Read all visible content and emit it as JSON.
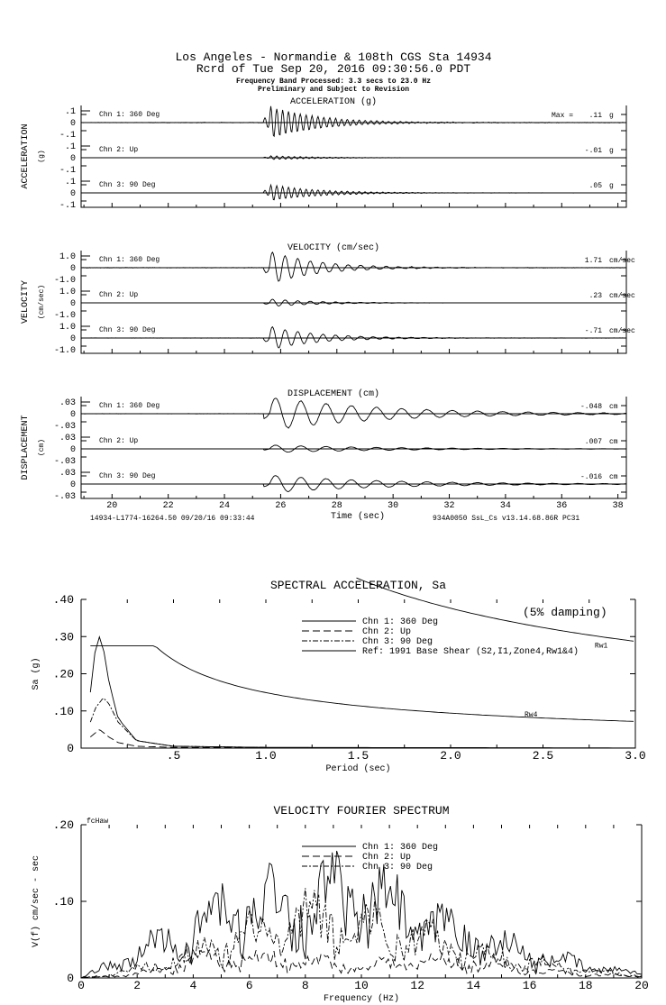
{
  "header": {
    "line1": "Los Angeles - Normandie & 108th     CGS Sta 14934",
    "line2": "Rcrd of Tue Sep 20, 2016 09:30:56.0 PDT",
    "line3": "Frequency Band Processed: 3.3 secs to 23.0 Hz",
    "line4": "Preliminary and Subject to Revision"
  },
  "footer": {
    "left": "14934-L1774-16264.50 09/20/16 09:33:44",
    "right": "934A0050  SsL_Cs  v13.14.68.86R PC31"
  },
  "chart_data": [
    {
      "type": "line",
      "title": "ACCELERATION (g)",
      "ylabel": "ACCELERATION",
      "yunit": "(g)",
      "max_label": "Max =",
      "xlim": [
        18.9,
        38.3
      ],
      "yticks": [
        ".1",
        "0",
        "-.1"
      ],
      "ylim": [
        -0.1,
        0.1
      ],
      "event_time": 25.6,
      "series": [
        {
          "name": "Chn 1: 360 Deg",
          "peak": ".11",
          "unit": "g",
          "amp": 0.11
        },
        {
          "name": "Chn 2: Up",
          "peak": "-.01",
          "unit": "g",
          "amp": 0.012
        },
        {
          "name": "Chn 3: 90 Deg",
          "peak": ".05",
          "unit": "g",
          "amp": 0.05
        }
      ]
    },
    {
      "type": "line",
      "title": "VELOCITY (cm/sec)",
      "ylabel": "VELOCITY",
      "yunit": "(cm/sec)",
      "xlim": [
        18.9,
        38.3
      ],
      "yticks": [
        "1.0",
        "0",
        "-1.0"
      ],
      "ylim": [
        -1,
        1
      ],
      "event_time": 25.6,
      "series": [
        {
          "name": "Chn 1: 360 Deg",
          "peak": "1.71",
          "unit": "cm/sec",
          "amp": 1.71
        },
        {
          "name": "Chn 2: Up",
          "peak": ".23",
          "unit": "cm/sec",
          "amp": 0.23
        },
        {
          "name": "Chn 3: 90 Deg",
          "peak": "-.71",
          "unit": "cm/sec",
          "amp": 0.71
        }
      ]
    },
    {
      "type": "line",
      "title": "DISPLACEMENT (cm)",
      "ylabel": "DISPLACEMENT",
      "yunit": "(cm)",
      "xlabel": "Time (sec)",
      "xlim": [
        18.9,
        38.3
      ],
      "yticks": [
        ".03",
        "0",
        "-.03"
      ],
      "ylim": [
        -0.03,
        0.03
      ],
      "event_time": 25.6,
      "xticks": [
        "20",
        "22",
        "24",
        "26",
        "28",
        "30",
        "32",
        "34",
        "36",
        "38"
      ],
      "series": [
        {
          "name": "Chn 1: 360 Deg",
          "peak": "-.048",
          "unit": "cm",
          "amp": 0.048
        },
        {
          "name": "Chn 2: Up",
          "peak": ".007",
          "unit": "cm",
          "amp": 0.007
        },
        {
          "name": "Chn 3: 90 Deg",
          "peak": "-.016",
          "unit": "cm",
          "amp": 0.016
        }
      ]
    },
    {
      "type": "line",
      "title": "SPECTRAL ACCELERATION, Sa",
      "note": "(5% damping)",
      "xlabel": "Period (sec)",
      "ylabel": "Sa (g)",
      "xlim": [
        0,
        3
      ],
      "ylim": [
        0,
        0.4
      ],
      "xticks": [
        ".5",
        "1.0",
        "1.5",
        "2.0",
        "2.5",
        "3.0"
      ],
      "yticks": [
        ".40",
        ".30",
        ".20",
        ".10",
        "0"
      ],
      "series": [
        {
          "name": "Chn 1: 360 Deg",
          "dash": "",
          "x": [
            0.05,
            0.08,
            0.1,
            0.12,
            0.15,
            0.2,
            0.3,
            0.5,
            1,
            3
          ],
          "y": [
            0.15,
            0.28,
            0.3,
            0.27,
            0.18,
            0.08,
            0.02,
            0.005,
            0.002,
            0.0005
          ]
        },
        {
          "name": "Chn 2: Up",
          "dash": "8 4",
          "x": [
            0.05,
            0.1,
            0.15,
            0.2,
            0.3,
            0.5,
            1
          ],
          "y": [
            0.03,
            0.05,
            0.03,
            0.015,
            0.005,
            0.002,
            0.001
          ]
        },
        {
          "name": "Chn 3: 90 Deg",
          "dash": "6 2 2 2",
          "x": [
            0.05,
            0.08,
            0.12,
            0.15,
            0.2,
            0.3,
            0.5,
            1
          ],
          "y": [
            0.07,
            0.11,
            0.135,
            0.12,
            0.07,
            0.02,
            0.005,
            0.002
          ]
        },
        {
          "name": "Ref: 1991 Base Shear (S2,I1,Zone4,Rw1&4)",
          "dash": "",
          "curves": [
            {
              "label": "Rw4",
              "factor": 1
            },
            {
              "label": "Rw1",
              "factor": 4
            }
          ],
          "plateau": 0.275,
          "corner": 0.4
        }
      ]
    },
    {
      "type": "line",
      "title": "VELOCITY FOURIER SPECTRUM",
      "corner_label": "fcHaw",
      "xlabel": "Frequency (Hz)",
      "ylabel": "V(f)   cm/sec - sec",
      "xlim": [
        0,
        20
      ],
      "ylim": [
        0,
        0.2
      ],
      "xticks": [
        "0",
        "2",
        "4",
        "6",
        "8",
        "10",
        "12",
        "14",
        "16",
        "18",
        "20"
      ],
      "yticks": [
        ".20",
        ".10",
        "0"
      ],
      "series": [
        {
          "name": "Chn 1: 360 Deg",
          "dash": "",
          "x": [
            0,
            2,
            4,
            6,
            8,
            10,
            12,
            14,
            16,
            18,
            20
          ],
          "y": [
            0,
            0.03,
            0.06,
            0.09,
            0.095,
            0.1,
            0.07,
            0.05,
            0.03,
            0.015,
            0.005
          ]
        },
        {
          "name": "Chn 2: Up",
          "dash": "8 4",
          "x": [
            0,
            2,
            4,
            6,
            8,
            10,
            12,
            14,
            16,
            18,
            20
          ],
          "y": [
            0,
            0.005,
            0.02,
            0.025,
            0.02,
            0.015,
            0.02,
            0.02,
            0.01,
            0.005,
            0.002
          ]
        },
        {
          "name": "Chn 3: 90 Deg",
          "dash": "6 2 2 2",
          "x": [
            0,
            2,
            4,
            6,
            8,
            10,
            12,
            14,
            16,
            18,
            20
          ],
          "y": [
            0,
            0.01,
            0.03,
            0.05,
            0.07,
            0.065,
            0.05,
            0.03,
            0.02,
            0.01,
            0.003
          ]
        }
      ]
    }
  ]
}
